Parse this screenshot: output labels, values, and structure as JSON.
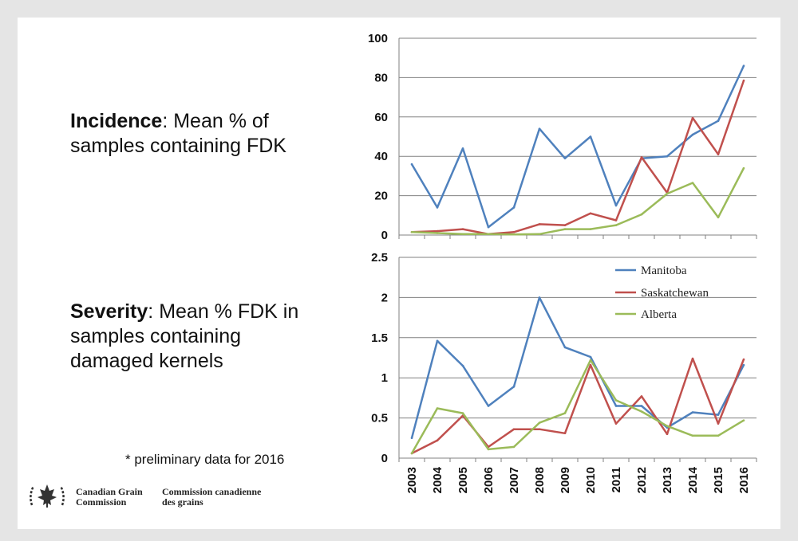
{
  "labels": {
    "incidence_bold": "Incidence",
    "incidence_rest": ": Mean % of",
    "incidence_line2": "samples containing FDK",
    "severity_bold": "Severity",
    "severity_rest": ": Mean % FDK in",
    "severity_line2": "samples containing",
    "severity_line3": "damaged kernels",
    "footnote": "* preliminary data for 2016"
  },
  "logo": {
    "en_line1": "Canadian Grain",
    "en_line2": "Commission",
    "fr_line1": "Commission canadienne",
    "fr_line2": "des grains"
  },
  "colors": {
    "Manitoba": "#4f81bd",
    "Saskatchewan": "#c0504d",
    "Alberta": "#9bbb59",
    "grid": "#808080",
    "logo": "#333333"
  },
  "chart_data": [
    {
      "type": "line",
      "title": "Incidence",
      "x": [
        "2003",
        "2004",
        "2005",
        "2006",
        "2007",
        "2008",
        "2009",
        "2010",
        "2011",
        "2012",
        "2013",
        "2014",
        "2015",
        "2016"
      ],
      "ylim": [
        0,
        100
      ],
      "yticks": [
        "0",
        "20",
        "40",
        "60",
        "80",
        "100"
      ],
      "ytick_values": [
        0,
        20,
        40,
        60,
        80,
        100
      ],
      "series": [
        {
          "name": "Manitoba",
          "values": [
            36,
            14,
            44,
            4,
            14,
            54,
            39,
            50,
            15,
            39,
            40,
            51,
            58,
            86
          ]
        },
        {
          "name": "Saskatchewan",
          "values": [
            1.5,
            2,
            3,
            0.5,
            1.5,
            5.5,
            5,
            11,
            7.5,
            39.5,
            21.5,
            59.5,
            41,
            78.5
          ]
        },
        {
          "name": "Alberta",
          "values": [
            1.5,
            1,
            0.5,
            0.5,
            0.3,
            0.5,
            3,
            3,
            5,
            10.5,
            21,
            26.5,
            9,
            34
          ]
        }
      ]
    },
    {
      "type": "line",
      "title": "Severity",
      "x": [
        "2003",
        "2004",
        "2005",
        "2006",
        "2007",
        "2008",
        "2009",
        "2010",
        "2011",
        "2012",
        "2013",
        "2014",
        "2015",
        "2016"
      ],
      "ylim": [
        0,
        2.5
      ],
      "yticks": [
        "0",
        "0.5",
        "1",
        "1.5",
        "2",
        "2.5"
      ],
      "ytick_values": [
        0,
        0.5,
        1,
        1.5,
        2,
        2.5
      ],
      "legend_position": "top-right",
      "series": [
        {
          "name": "Manitoba",
          "values": [
            0.25,
            1.46,
            1.15,
            0.65,
            0.89,
            2.0,
            1.38,
            1.26,
            0.65,
            0.65,
            0.38,
            0.57,
            0.54,
            1.16
          ]
        },
        {
          "name": "Saskatchewan",
          "values": [
            0.06,
            0.22,
            0.53,
            0.14,
            0.36,
            0.36,
            0.31,
            1.16,
            0.43,
            0.77,
            0.3,
            1.24,
            0.43,
            1.23
          ]
        },
        {
          "name": "Alberta",
          "values": [
            0.06,
            0.62,
            0.56,
            0.11,
            0.14,
            0.44,
            0.56,
            1.22,
            0.72,
            0.58,
            0.4,
            0.28,
            0.28,
            0.47
          ]
        }
      ]
    }
  ]
}
